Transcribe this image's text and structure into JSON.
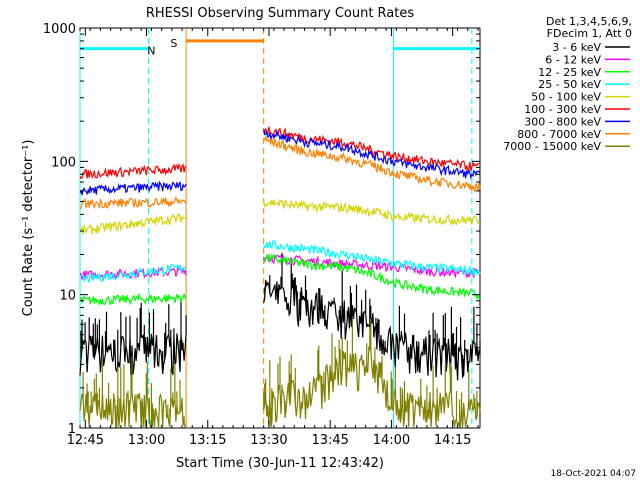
{
  "chart_data": {
    "type": "line",
    "title": "RHESSI Observing Summary Count Rates",
    "xlabel": "Start Time (30-Jun-11 12:43:42)",
    "ylabel": "Count Rate (s⁻¹ detector⁻¹)",
    "x_unit": "minutes after 12:43:42",
    "xlim": [
      0,
      98
    ],
    "ylim": [
      1,
      1000
    ],
    "yscale": "log",
    "x_ticks": [
      {
        "x": 1.3,
        "label": "12:45"
      },
      {
        "x": 16.3,
        "label": "13:00"
      },
      {
        "x": 31.3,
        "label": "13:15"
      },
      {
        "x": 46.3,
        "label": "13:30"
      },
      {
        "x": 61.3,
        "label": "13:45"
      },
      {
        "x": 76.3,
        "label": "14:00"
      },
      {
        "x": 91.3,
        "label": "14:15"
      }
    ],
    "y_tick_labels": [
      {
        "value": 1,
        "label": "1"
      },
      {
        "value": 10,
        "label": "10"
      },
      {
        "value": 100,
        "label": "100"
      },
      {
        "value": 1000,
        "label": "1000"
      }
    ],
    "legend_header": [
      "Det 1,3,4,5,6,9,",
      "FDecim 1, Att 0"
    ],
    "legend_position": "right",
    "timestamp": "18-Oct-2021 04:07",
    "gaps": [
      [
        26,
        45
      ]
    ],
    "series": [
      {
        "name": "3 - 6 keV",
        "color": "#000000",
        "points": [
          [
            0,
            3.8
          ],
          [
            26,
            3.8
          ],
          [
            45,
            10
          ],
          [
            55,
            8.5
          ],
          [
            65,
            7
          ],
          [
            72,
            5.5
          ],
          [
            78,
            4
          ],
          [
            85,
            3.6
          ],
          [
            98,
            3.3
          ]
        ]
      },
      {
        "name": "6 - 12 keV",
        "color": "#ff00ff",
        "points": [
          [
            0,
            14
          ],
          [
            26,
            15
          ],
          [
            45,
            19
          ],
          [
            55,
            18
          ],
          [
            65,
            17
          ],
          [
            72,
            16.5
          ],
          [
            78,
            16
          ],
          [
            85,
            15
          ],
          [
            98,
            14.5
          ]
        ]
      },
      {
        "name": "12 - 25 keV",
        "color": "#00ff00",
        "points": [
          [
            0,
            9
          ],
          [
            26,
            9.5
          ],
          [
            45,
            19
          ],
          [
            55,
            17
          ],
          [
            65,
            16
          ],
          [
            72,
            14
          ],
          [
            78,
            12
          ],
          [
            85,
            11
          ],
          [
            98,
            10
          ]
        ]
      },
      {
        "name": "25 - 50 keV",
        "color": "#00ffff",
        "points": [
          [
            0,
            13
          ],
          [
            26,
            16
          ],
          [
            45,
            24
          ],
          [
            55,
            22
          ],
          [
            65,
            20
          ],
          [
            72,
            18
          ],
          [
            78,
            17
          ],
          [
            85,
            16
          ],
          [
            98,
            15
          ]
        ]
      },
      {
        "name": "50 - 100 keV",
        "color": "#d4d400",
        "points": [
          [
            0,
            30
          ],
          [
            26,
            38
          ],
          [
            45,
            50
          ],
          [
            55,
            46
          ],
          [
            65,
            45
          ],
          [
            72,
            42
          ],
          [
            78,
            38
          ],
          [
            85,
            37
          ],
          [
            98,
            36
          ]
        ]
      },
      {
        "name": "100 - 300 keV",
        "color": "#ff0000",
        "points": [
          [
            0,
            80
          ],
          [
            26,
            88
          ],
          [
            45,
            175
          ],
          [
            55,
            150
          ],
          [
            65,
            138
          ],
          [
            72,
            120
          ],
          [
            78,
            108
          ],
          [
            85,
            100
          ],
          [
            98,
            90
          ]
        ]
      },
      {
        "name": "300 - 800 keV",
        "color": "#0000ff",
        "points": [
          [
            0,
            60
          ],
          [
            26,
            66
          ],
          [
            45,
            165
          ],
          [
            55,
            140
          ],
          [
            65,
            128
          ],
          [
            72,
            110
          ],
          [
            78,
            98
          ],
          [
            85,
            90
          ],
          [
            98,
            78
          ]
        ]
      },
      {
        "name": "800 - 7000 keV",
        "color": "#ff8000",
        "points": [
          [
            0,
            48
          ],
          [
            26,
            50
          ],
          [
            45,
            145
          ],
          [
            55,
            118
          ],
          [
            65,
            105
          ],
          [
            72,
            92
          ],
          [
            78,
            80
          ],
          [
            85,
            72
          ],
          [
            98,
            64
          ]
        ]
      },
      {
        "name": "7000 - 15000 keV",
        "color": "#808000",
        "points": [
          [
            0,
            1.4
          ],
          [
            26,
            1.4
          ],
          [
            45,
            1.4
          ],
          [
            58,
            1.9
          ],
          [
            64,
            2.8
          ],
          [
            72,
            3
          ],
          [
            75,
            1.8
          ],
          [
            80,
            1.4
          ],
          [
            98,
            1.4
          ]
        ]
      }
    ],
    "segments": [
      {
        "name": "orbit-day",
        "color": "#00ffff",
        "level": 700,
        "ranges": [
          [
            0,
            16.8
          ],
          [
            76.8,
            98
          ]
        ],
        "boundaries": [
          0,
          16.8,
          76.8,
          96
        ]
      },
      {
        "name": "night-marker",
        "label": "N",
        "color": "#00ffff",
        "x": 17.5,
        "level": 700
      },
      {
        "name": "saa",
        "label": "S",
        "color": "#ff8000",
        "x": 23,
        "level": 800,
        "ranges": [
          [
            26,
            45
          ]
        ],
        "boundaries": [
          26,
          45
        ]
      }
    ]
  }
}
